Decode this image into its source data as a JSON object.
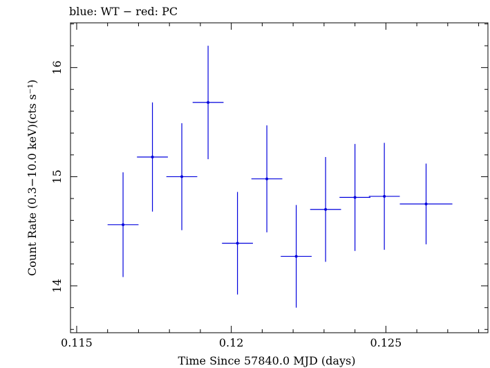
{
  "chart_data": {
    "type": "scatter",
    "title": "blue: WT − red: PC",
    "xlabel": "Time Since 57840.0 MJD (days)",
    "ylabel": "Count Rate (0.3−10.0 keV)(cts s⁻¹)",
    "xlim": [
      0.1148,
      0.1283
    ],
    "ylim": [
      13.57,
      16.41
    ],
    "x_ticks": [
      0.115,
      0.12,
      0.125
    ],
    "x_tick_labels": [
      "0.115",
      "0.12",
      "0.125"
    ],
    "y_ticks": [
      14,
      15,
      16
    ],
    "y_tick_labels": [
      "14",
      "15",
      "16"
    ],
    "grid": false,
    "series": [
      {
        "color": "#0000dd",
        "points": [
          {
            "x": 0.1165,
            "xerr": 0.0005,
            "y": 14.56,
            "yerr": 0.48
          },
          {
            "x": 0.11745,
            "xerr": 0.0005,
            "y": 15.18,
            "yerr": 0.5
          },
          {
            "x": 0.1184,
            "xerr": 0.0005,
            "y": 15.0,
            "yerr": 0.49
          },
          {
            "x": 0.11925,
            "xerr": 0.0005,
            "y": 15.68,
            "yerr": 0.52
          },
          {
            "x": 0.1202,
            "xerr": 0.0005,
            "y": 14.39,
            "yerr": 0.47
          },
          {
            "x": 0.12115,
            "xerr": 0.0005,
            "y": 14.98,
            "yerr": 0.49
          },
          {
            "x": 0.1221,
            "xerr": 0.0005,
            "y": 14.27,
            "yerr": 0.47
          },
          {
            "x": 0.12305,
            "xerr": 0.0005,
            "y": 14.7,
            "yerr": 0.48
          },
          {
            "x": 0.124,
            "xerr": 0.0005,
            "y": 14.81,
            "yerr": 0.49
          },
          {
            "x": 0.12495,
            "xerr": 0.0005,
            "y": 14.82,
            "yerr": 0.49
          },
          {
            "x": 0.1263,
            "xerr": 0.00085,
            "y": 14.75,
            "yerr": 0.37
          }
        ]
      }
    ]
  }
}
